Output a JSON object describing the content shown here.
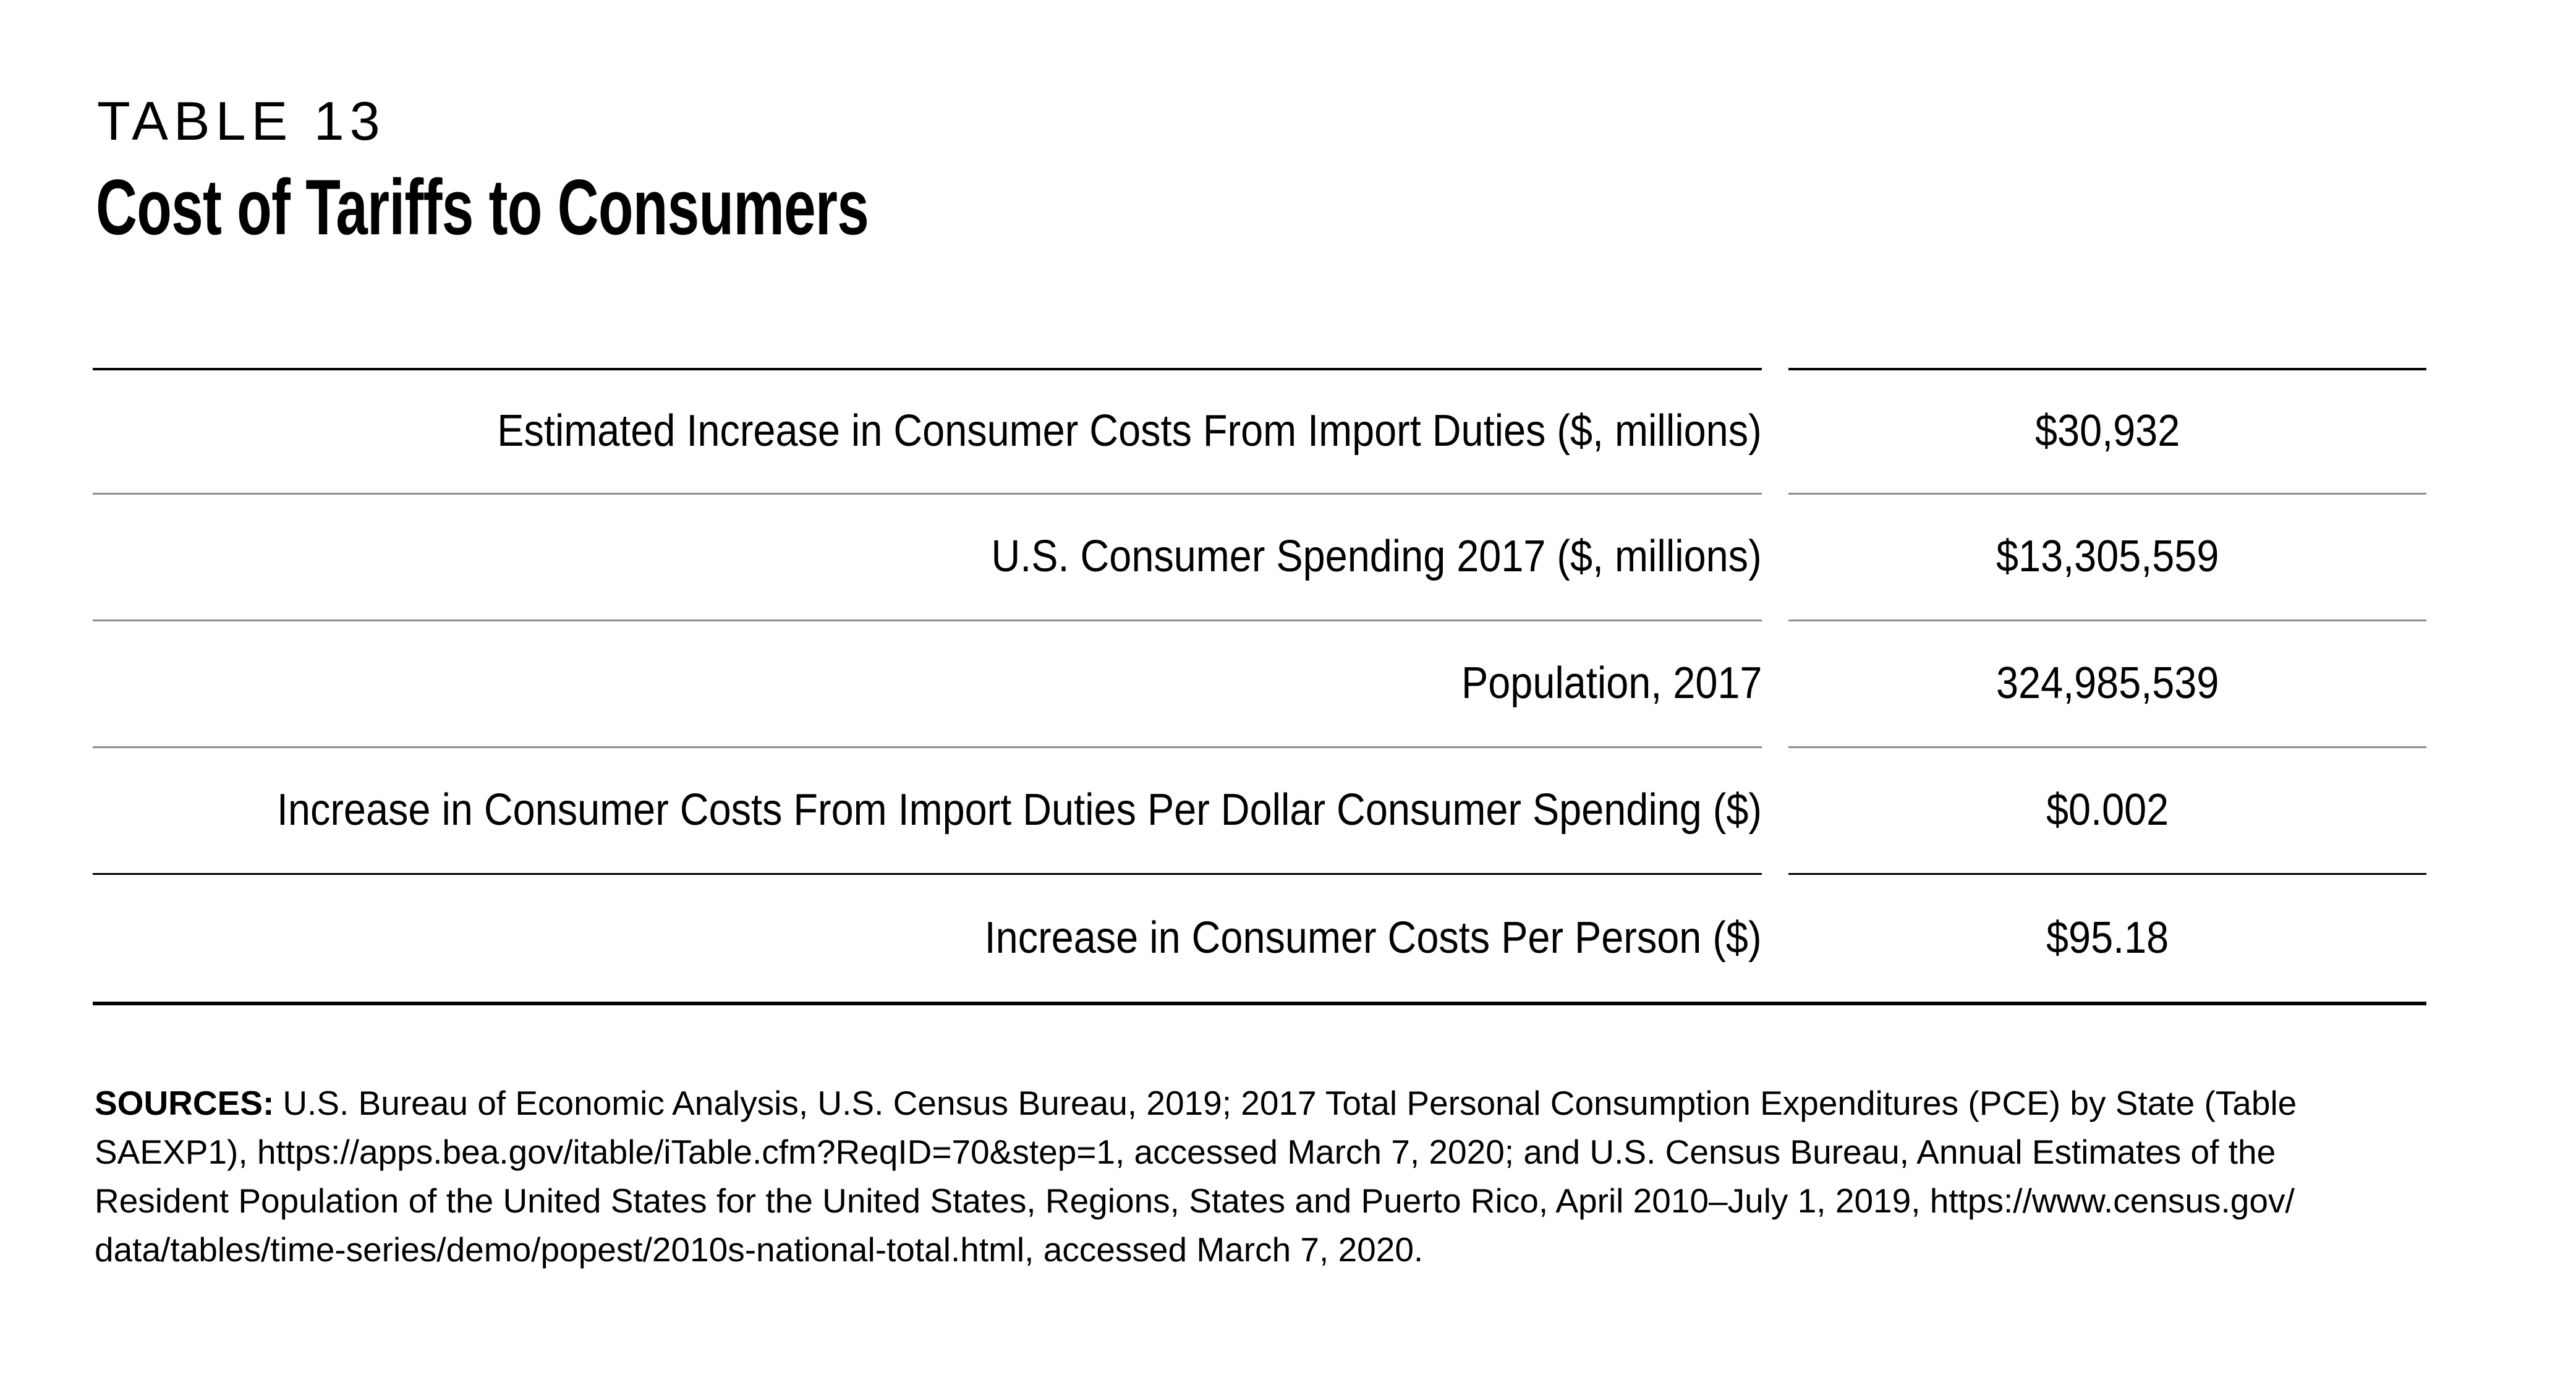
{
  "header": {
    "eyebrow": "TABLE 13",
    "title": "Cost of Tariffs to Consumers"
  },
  "table": {
    "rows": [
      {
        "label": "Estimated Increase in Consumer Costs From Import Duties ($, millions)",
        "value": "$30,932"
      },
      {
        "label": "U.S. Consumer Spending 2017 ($, millions)",
        "value": "$13,305,559"
      },
      {
        "label": "Population, 2017",
        "value": "324,985,539"
      },
      {
        "label": "Increase in Consumer Costs From Import Duties Per Dollar Consumer Spending ($)",
        "value": "$0.002"
      },
      {
        "label": "Increase in Consumer Costs Per Person ($)",
        "value": "$95.18"
      }
    ],
    "colors": {
      "rule_black": "#000000",
      "separator_gray": "#8c8c8c"
    }
  },
  "sources": {
    "label": "SOURCES:",
    "lines": [
      "U.S. Bureau of Economic Analysis, U.S. Census Bureau, 2019; 2017 Total Personal Consumption Expenditures (PCE) by State (Table",
      "SAEXP1), https://apps.bea.gov/itable/iTable.cfm?ReqID=70&step=1, accessed March 7, 2020; and U.S. Census Bureau, Annual Estimates of the",
      "Resident Population of the United States for the United States, Regions, States and Puerto Rico, April 2010–July 1, 2019, https://www.census.gov/",
      "data/tables/time-series/demo/popest/2010s-national-total.html, accessed March 7, 2020."
    ]
  }
}
